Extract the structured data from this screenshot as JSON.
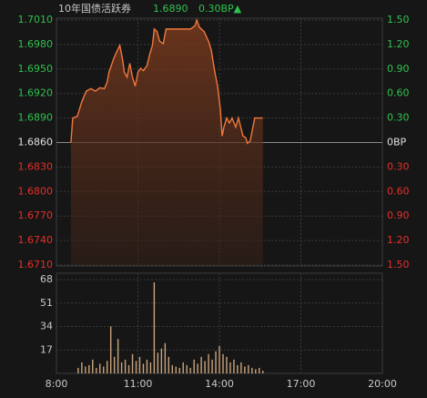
{
  "chart_data": [
    {
      "type": "line",
      "title": "10年国债活跃券",
      "last_price": "1.6890",
      "change": "0.30BP▲",
      "x": [
        512,
        516,
        526,
        536,
        546,
        556,
        566,
        576,
        586,
        592,
        596,
        606,
        612,
        620,
        626,
        630,
        636,
        642,
        648,
        654,
        660,
        666,
        672,
        680,
        686,
        692,
        696,
        702,
        708,
        716,
        722,
        756,
        776,
        786,
        790,
        796,
        806,
        816,
        822,
        830,
        836,
        842,
        846,
        850,
        856,
        862,
        868,
        876,
        882,
        888,
        892,
        898,
        902,
        908,
        914,
        918,
        936
      ],
      "series": [
        {
          "name": "10年国债活跃券",
          "color": "#f0783c",
          "values": [
            1.686,
            1.689,
            1.6892,
            1.691,
            1.6923,
            1.6926,
            1.6923,
            1.6927,
            1.6926,
            1.6934,
            1.6946,
            1.6962,
            1.697,
            1.6979,
            1.6962,
            1.6946,
            1.694,
            1.6957,
            1.694,
            1.6929,
            1.6946,
            1.6951,
            1.6948,
            1.6954,
            1.6968,
            1.6979,
            1.6999,
            1.6996,
            1.6984,
            1.6981,
            1.6999,
            1.6999,
            1.6999,
            1.7003,
            1.701,
            1.7001,
            1.6996,
            1.6984,
            1.6973,
            1.6946,
            1.6929,
            1.6901,
            1.6868,
            1.6879,
            1.689,
            1.6884,
            1.689,
            1.6879,
            1.689,
            1.6877,
            1.6868,
            1.6866,
            1.6859,
            1.6862,
            1.6879,
            1.689,
            1.689
          ]
        }
      ],
      "xlim": [
        480,
        1200
      ],
      "ylim": [
        1.671,
        1.701
      ],
      "yticks": [
        {
          "value": 1.701,
          "label": "1.7010"
        },
        {
          "value": 1.698,
          "label": "1.6980"
        },
        {
          "value": 1.695,
          "label": "1.6950"
        },
        {
          "value": 1.692,
          "label": "1.6920"
        },
        {
          "value": 1.689,
          "label": "1.6890"
        },
        {
          "value": 1.686,
          "label": "1.6860"
        },
        {
          "value": 1.683,
          "label": "1.6830"
        },
        {
          "value": 1.68,
          "label": "1.6800"
        },
        {
          "value": 1.677,
          "label": "1.6770"
        },
        {
          "value": 1.674,
          "label": "1.6740"
        },
        {
          "value": 1.671,
          "label": "1.6710"
        }
      ],
      "y2lim": [
        -1.5,
        1.5
      ],
      "y2ticks": [
        {
          "value": 1.5,
          "label": "1.50"
        },
        {
          "value": 1.2,
          "label": "1.20"
        },
        {
          "value": 0.9,
          "label": "0.90"
        },
        {
          "value": 0.6,
          "label": "0.60"
        },
        {
          "value": 0.3,
          "label": "0.30"
        },
        {
          "value": 0,
          "label": "0BP"
        },
        {
          "value": -0.3,
          "label": "0.30"
        },
        {
          "value": -0.6,
          "label": "0.60"
        },
        {
          "value": -0.9,
          "label": "0.90"
        },
        {
          "value": -1.2,
          "label": "1.20"
        },
        {
          "value": -1.5,
          "label": "1.50"
        }
      ],
      "up_color": "#2fc14e",
      "down_color": "#e2302a",
      "grid": true
    },
    {
      "type": "bar",
      "x": [
        528,
        536,
        544,
        552,
        560,
        568,
        576,
        584,
        592,
        600,
        608,
        616,
        624,
        632,
        640,
        648,
        656,
        664,
        672,
        680,
        688,
        696,
        704,
        712,
        720,
        728,
        736,
        744,
        752,
        760,
        768,
        776,
        784,
        792,
        800,
        808,
        816,
        824,
        832,
        840,
        848,
        856,
        864,
        872,
        880,
        888,
        896,
        904,
        912,
        920,
        928,
        936
      ],
      "values": [
        4,
        8,
        5,
        6,
        10,
        4,
        7,
        5,
        9,
        34,
        12,
        25,
        8,
        10,
        6,
        14,
        9,
        12,
        7,
        10,
        8,
        66,
        15,
        18,
        22,
        12,
        6,
        5,
        4,
        8,
        6,
        4,
        10,
        7,
        12,
        9,
        14,
        10,
        16,
        20,
        14,
        12,
        8,
        10,
        6,
        8,
        5,
        6,
        4,
        3,
        4,
        2
      ],
      "color": "#c9a47c",
      "xlim": [
        480,
        1200
      ],
      "xticks": [
        {
          "value": 480,
          "label": "8:00"
        },
        {
          "value": 660,
          "label": "11:00"
        },
        {
          "value": 840,
          "label": "14:00"
        },
        {
          "value": 1020,
          "label": "17:00"
        },
        {
          "value": 1200,
          "label": "20:00"
        }
      ],
      "ylim": [
        0,
        68
      ],
      "yticks": [
        68,
        51,
        34,
        17
      ],
      "grid": true
    }
  ]
}
